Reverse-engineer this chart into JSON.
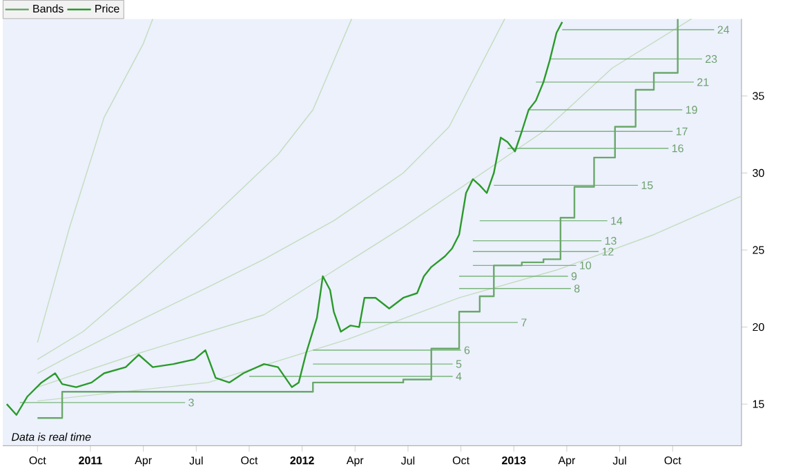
{
  "chart_data": {
    "type": "line",
    "xlim": [
      "2010-08-02",
      "2014-01-29"
    ],
    "ylim": [
      12.3,
      40
    ],
    "xticks": [
      {
        "value": "2010-10-01",
        "label": "Oct"
      },
      {
        "value": "2011-01-01",
        "label": "2011"
      },
      {
        "value": "2011-04-01",
        "label": "Apr"
      },
      {
        "value": "2011-07-01",
        "label": "Jul"
      },
      {
        "value": "2011-10-01",
        "label": "Oct"
      },
      {
        "value": "2012-01-01",
        "label": "2012"
      },
      {
        "value": "2012-04-01",
        "label": "Apr"
      },
      {
        "value": "2012-07-01",
        "label": "Jul"
      },
      {
        "value": "2012-10-01",
        "label": "Oct"
      },
      {
        "value": "2013-01-01",
        "label": "2013"
      },
      {
        "value": "2013-04-01",
        "label": "Apr"
      },
      {
        "value": "2013-07-01",
        "label": "Jul"
      },
      {
        "value": "2013-10-01",
        "label": "Oct"
      }
    ],
    "yticks": [
      15,
      20,
      25,
      30,
      35
    ],
    "legend": "top left",
    "series": [
      {
        "color": "#c4dcbc",
        "x": [
          "2010-10-01",
          "2010-11-25",
          "2011-01-25",
          "2011-04-01",
          "2011-04-17"
        ],
        "values": [
          19.0,
          26.4,
          33.6,
          38.4,
          40.0
        ]
      },
      {
        "color": "#c4dcbc",
        "x": [
          "2010-10-01",
          "2010-12-19",
          "2011-03-24",
          "2011-07-22",
          "2011-11-20",
          "2012-01-20",
          "2012-03-26"
        ],
        "values": [
          17.9,
          19.7,
          22.8,
          26.9,
          31.2,
          34.1,
          40.0
        ]
      },
      {
        "color": "#c4dcbc",
        "x": [
          "2010-10-01",
          "2010-11-25",
          "2011-03-24",
          "2011-07-22",
          "2011-10-27",
          "2012-02-24",
          "2012-06-23",
          "2012-09-11",
          "2012-12-16"
        ],
        "values": [
          17.0,
          18.1,
          20.4,
          22.6,
          24.4,
          26.9,
          30.0,
          33.0,
          40.0
        ]
      },
      {
        "color": "#c4dcbc",
        "x": [
          "2010-10-01",
          "2011-03-24",
          "2011-10-27",
          "2012-06-23",
          "2013-02-20",
          "2013-06-18",
          "2013-11-03"
        ],
        "values": [
          16.1,
          18.3,
          20.8,
          26.5,
          32.7,
          36.8,
          40.0
        ]
      },
      {
        "color": "#c4dcbc",
        "x": [
          "2010-10-01",
          "2011-07-22",
          "2012-03-19",
          "2012-09-28",
          "2013-03-14",
          "2013-08-30",
          "2014-01-29"
        ],
        "values": [
          15.2,
          16.4,
          19.2,
          21.9,
          23.7,
          26.0,
          28.5
        ]
      },
      {
        "color": "#7ab47a",
        "x": [
          "2010-09-01",
          "2011-06-12"
        ],
        "values": [
          15.1,
          15.1
        ]
      },
      {
        "color": "#7ab47a",
        "x": [
          "2011-10-01",
          "2012-09-17"
        ],
        "values": [
          16.8,
          16.8
        ]
      },
      {
        "color": "#7ab47a",
        "x": [
          "2012-01-20",
          "2012-09-17"
        ],
        "values": [
          17.6,
          17.6
        ]
      },
      {
        "color": "#7ab47a",
        "x": [
          "2012-01-20",
          "2012-10-01"
        ],
        "values": [
          18.5,
          18.5
        ]
      },
      {
        "color": "#7ab47a",
        "x": [
          "2012-04-08",
          "2013-01-08"
        ],
        "values": [
          20.3,
          20.3
        ]
      },
      {
        "color": "#7ab47a",
        "x": [
          "2012-09-28",
          "2013-04-08"
        ],
        "values": [
          22.5,
          22.5
        ]
      },
      {
        "color": "#7ab47a",
        "x": [
          "2012-09-28",
          "2013-04-03"
        ],
        "values": [
          23.3,
          23.3
        ]
      },
      {
        "color": "#7ab47a",
        "x": [
          "2012-10-22",
          "2013-04-17"
        ],
        "values": [
          24.0,
          24.0
        ]
      },
      {
        "color": "#7ab47a",
        "x": [
          "2012-10-22",
          "2013-05-26"
        ],
        "values": [
          24.9,
          24.9
        ]
      },
      {
        "color": "#7ab47a",
        "x": [
          "2012-10-22",
          "2013-05-31"
        ],
        "values": [
          25.6,
          25.6
        ]
      },
      {
        "color": "#7ab47a",
        "x": [
          "2012-11-03",
          "2013-06-10"
        ],
        "values": [
          26.9,
          26.9
        ]
      },
      {
        "color": "#7ab47a",
        "x": [
          "2012-11-27",
          "2013-08-02"
        ],
        "values": [
          29.2,
          29.2
        ]
      },
      {
        "color": "#7ab47a",
        "x": [
          "2012-12-21",
          "2013-09-24"
        ],
        "values": [
          31.6,
          31.6
        ]
      },
      {
        "color": "#7ab47a",
        "x": [
          "2013-01-03",
          "2013-10-01"
        ],
        "values": [
          32.7,
          32.7
        ]
      },
      {
        "color": "#7ab47a",
        "x": [
          "2013-01-27",
          "2013-10-18"
        ],
        "values": [
          34.1,
          34.1
        ]
      },
      {
        "color": "#7ab47a",
        "x": [
          "2013-02-08",
          "2013-11-07"
        ],
        "values": [
          35.9,
          35.9
        ]
      },
      {
        "color": "#7ab47a",
        "x": [
          "2013-03-02",
          "2013-11-21"
        ],
        "values": [
          37.4,
          37.4
        ]
      },
      {
        "color": "#7ab47a",
        "x": [
          "2013-03-24",
          "2013-12-12"
        ],
        "values": [
          39.3,
          39.3
        ]
      },
      {
        "type": "step",
        "name": "Bands",
        "color": "#6aa86a",
        "x": [
          "2010-10-01",
          "2010-11-13",
          "2012-01-20",
          "2012-06-23",
          "2012-08-11",
          "2012-09-28",
          "2012-11-03",
          "2012-11-27",
          "2013-01-15",
          "2013-02-20",
          "2013-03-21",
          "2013-04-14",
          "2013-05-18",
          "2013-06-23",
          "2013-07-29",
          "2013-08-30",
          "2013-10-10"
        ],
        "values": [
          14.1,
          15.8,
          16.4,
          16.6,
          18.6,
          21.0,
          22.0,
          24.0,
          24.2,
          24.4,
          27.1,
          29.1,
          31.0,
          33.0,
          35.4,
          36.5,
          40.0
        ]
      },
      {
        "name": "Price",
        "color": "#2a9a2a",
        "x": [
          "2010-08-09",
          "2010-08-26",
          "2010-09-14",
          "2010-10-08",
          "2010-11-01",
          "2010-11-13",
          "2010-12-07",
          "2011-01-03",
          "2011-01-25",
          "2011-03-01",
          "2011-03-24",
          "2011-04-17",
          "2011-05-23",
          "2011-06-28",
          "2011-07-17",
          "2011-08-04",
          "2011-08-28",
          "2011-09-21",
          "2011-10-27",
          "2011-11-20",
          "2011-12-14",
          "2011-12-26",
          "2012-01-08",
          "2012-01-27",
          "2012-02-06",
          "2012-02-18",
          "2012-02-24",
          "2012-03-07",
          "2012-03-24",
          "2012-04-08",
          "2012-04-17",
          "2012-05-06",
          "2012-05-30",
          "2012-06-23",
          "2012-07-17",
          "2012-07-29",
          "2012-08-11",
          "2012-09-04",
          "2012-09-16",
          "2012-09-28",
          "2012-10-10",
          "2012-10-22",
          "2012-11-03",
          "2012-11-15",
          "2012-11-27",
          "2012-12-09",
          "2012-12-21",
          "2013-01-03",
          "2013-01-15",
          "2013-01-27",
          "2013-02-08",
          "2013-02-20",
          "2013-03-02",
          "2013-03-14",
          "2013-03-24"
        ],
        "values": [
          15.0,
          14.3,
          15.5,
          16.4,
          17.0,
          16.3,
          16.1,
          16.4,
          17.0,
          17.4,
          18.2,
          17.4,
          17.6,
          17.9,
          18.5,
          16.7,
          16.4,
          17.0,
          17.6,
          17.4,
          16.1,
          16.4,
          18.3,
          20.6,
          23.3,
          22.4,
          21.0,
          19.7,
          20.1,
          20.0,
          21.9,
          21.9,
          21.2,
          21.9,
          22.2,
          23.3,
          23.9,
          24.6,
          25.1,
          26.0,
          28.7,
          29.6,
          29.2,
          28.7,
          30.0,
          32.3,
          32.0,
          31.4,
          32.7,
          34.1,
          34.7,
          35.9,
          37.3,
          39.1,
          39.8
        ]
      }
    ],
    "annotations": [
      {
        "text": "3",
        "x": "2011-06-12",
        "y": 15.1
      },
      {
        "text": "4",
        "x": "2012-09-17",
        "y": 16.8
      },
      {
        "text": "5",
        "x": "2012-09-17",
        "y": 17.6
      },
      {
        "text": "6",
        "x": "2012-10-01",
        "y": 18.5
      },
      {
        "text": "7",
        "x": "2013-01-08",
        "y": 20.3
      },
      {
        "text": "8",
        "x": "2013-04-08",
        "y": 22.5
      },
      {
        "text": "9",
        "x": "2013-04-03",
        "y": 23.3
      },
      {
        "text": "10",
        "x": "2013-04-17",
        "y": 24.0
      },
      {
        "text": "12",
        "x": "2013-05-26",
        "y": 24.9
      },
      {
        "text": "13",
        "x": "2013-05-31",
        "y": 25.6
      },
      {
        "text": "14",
        "x": "2013-06-10",
        "y": 26.9
      },
      {
        "text": "15",
        "x": "2013-08-02",
        "y": 29.2
      },
      {
        "text": "16",
        "x": "2013-09-24",
        "y": 31.6
      },
      {
        "text": "17",
        "x": "2013-10-01",
        "y": 32.7
      },
      {
        "text": "19",
        "x": "2013-10-18",
        "y": 34.1
      },
      {
        "text": "21",
        "x": "2013-11-07",
        "y": 35.9
      },
      {
        "text": "23",
        "x": "2013-11-21",
        "y": 37.4
      },
      {
        "text": "24",
        "x": "2013-12-12",
        "y": 39.3
      },
      "Data is real time"
    ]
  }
}
